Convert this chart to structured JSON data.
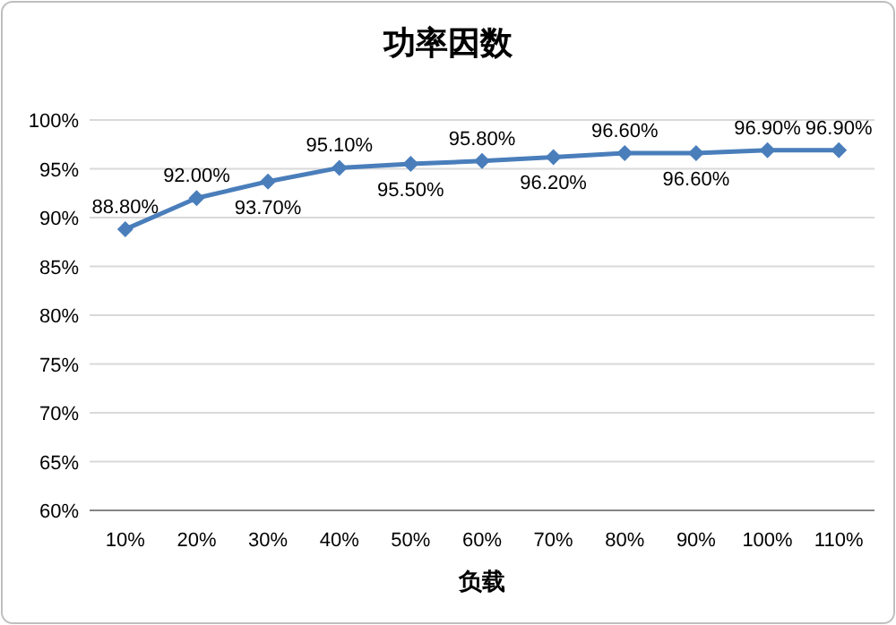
{
  "chart_data": {
    "type": "line",
    "title": "功率因数",
    "xlabel": "负载",
    "categories": [
      "10%",
      "20%",
      "30%",
      "40%",
      "50%",
      "60%",
      "70%",
      "80%",
      "90%",
      "100%",
      "110%"
    ],
    "values": [
      88.8,
      92.0,
      93.7,
      95.1,
      95.5,
      95.8,
      96.2,
      96.6,
      96.6,
      96.9,
      96.9
    ],
    "value_labels": [
      "88.80%",
      "92.00%",
      "93.70%",
      "95.10%",
      "95.50%",
      "95.80%",
      "96.20%",
      "96.60%",
      "96.60%",
      "96.90%",
      "96.90%"
    ],
    "color": "#4a7ebb",
    "marker": "diamond",
    "line_style": "solid",
    "grid": "y",
    "ylim": [
      60,
      100
    ],
    "yticks": [
      {
        "value": 60,
        "label": "60%"
      },
      {
        "value": 65,
        "label": "65%"
      },
      {
        "value": 70,
        "label": "70%"
      },
      {
        "value": 75,
        "label": "75%"
      },
      {
        "value": 80,
        "label": "80%"
      },
      {
        "value": 85,
        "label": "85%"
      },
      {
        "value": 90,
        "label": "90%"
      },
      {
        "value": 95,
        "label": "95%"
      },
      {
        "value": 100,
        "label": "100%"
      }
    ]
  }
}
